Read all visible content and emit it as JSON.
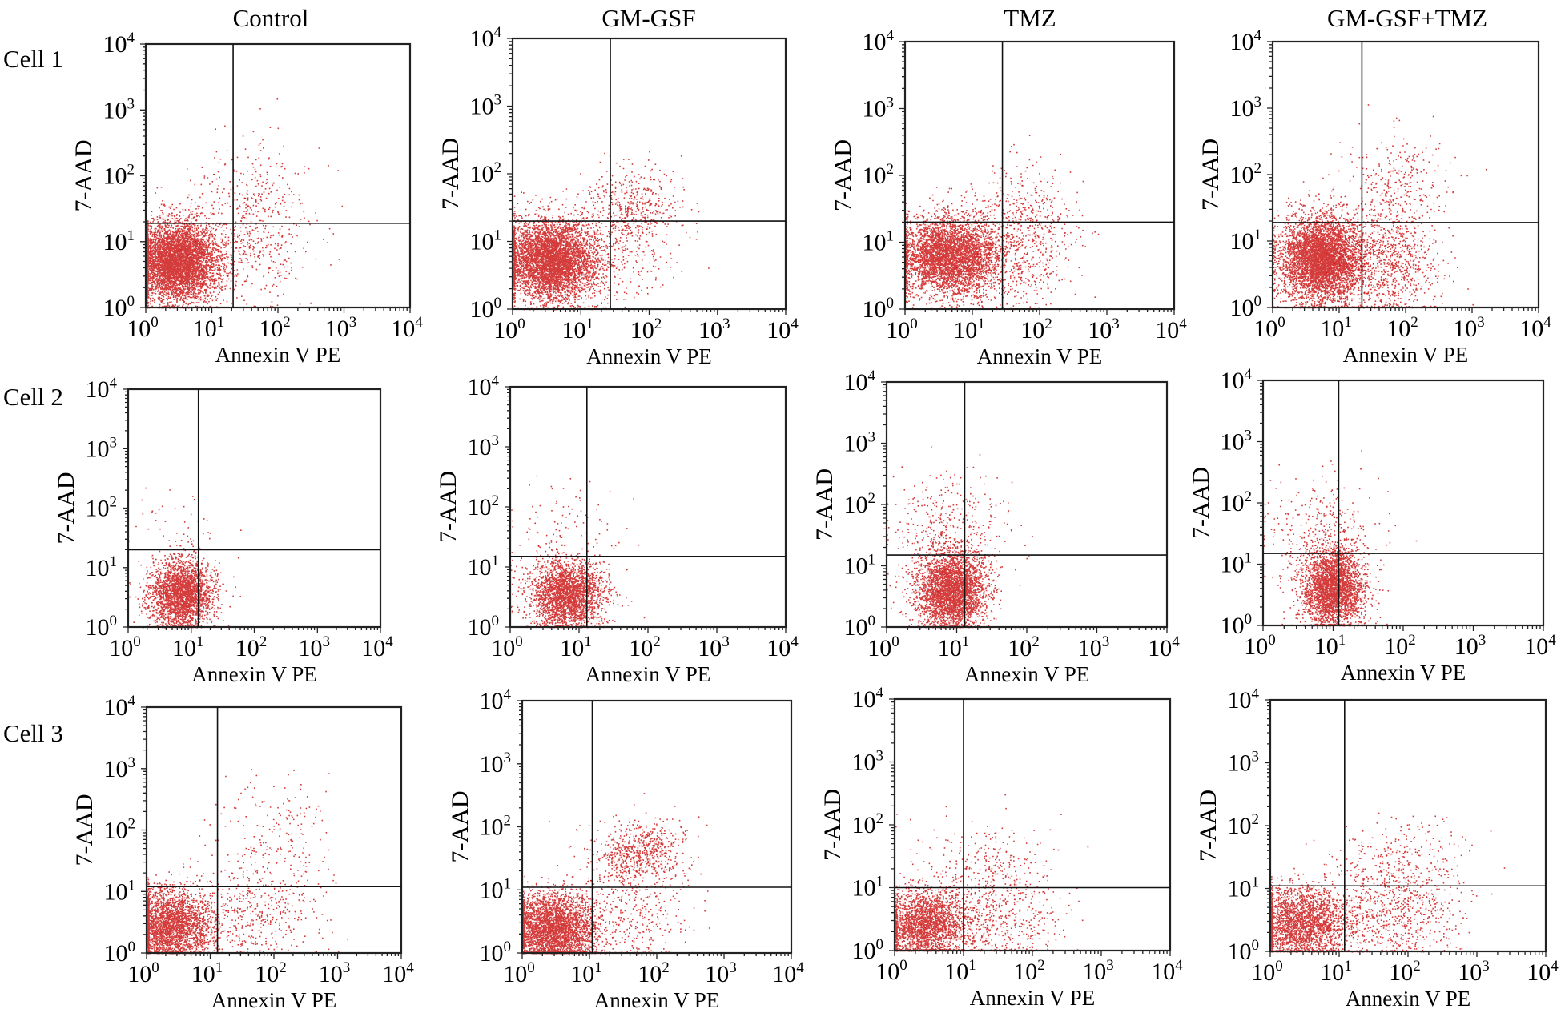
{
  "figure": {
    "column_titles": [
      "Control",
      "GM-GSF",
      "TMZ",
      "GM-GSF+TMZ"
    ],
    "row_labels": [
      "Cell 1",
      "Cell 2",
      "Cell 3"
    ],
    "xlabel": "Annexin V  PE",
    "ylabel": "7-AAD",
    "dot_color": "#cc1a1a",
    "axis_color": "#222222"
  },
  "chart_data": {
    "type": "scatter",
    "title": "",
    "xlabel": "Annexin V  PE",
    "ylabel": "7-AAD",
    "xscale": "log",
    "yscale": "log",
    "xlim": [
      1,
      10000
    ],
    "ylim": [
      1,
      10000
    ],
    "x_ticks": [
      1,
      10,
      100,
      1000,
      10000
    ],
    "y_ticks": [
      1,
      10,
      100,
      1000,
      10000
    ],
    "tick_labels": [
      "10^0",
      "10^1",
      "10^2",
      "10^3",
      "10^4"
    ],
    "grid": false,
    "legend": "none",
    "panels": [
      {
        "row": "Cell 1",
        "column": "Control",
        "gate_x": 21,
        "gate_y": 19,
        "clusters": [
          {
            "log_cx": 0.45,
            "log_cy": 0.7,
            "log_sx": 0.32,
            "log_sy": 0.3,
            "n": 5200
          },
          {
            "log_cx": 1.55,
            "log_cy": 1.0,
            "log_sx": 0.45,
            "log_sy": 0.5,
            "n": 450
          },
          {
            "log_cx": 1.7,
            "log_cy": 1.9,
            "log_sx": 0.45,
            "log_sy": 0.45,
            "n": 160
          }
        ]
      },
      {
        "row": "Cell 1",
        "column": "GM-GSF",
        "gate_x": 27,
        "gate_y": 20,
        "clusters": [
          {
            "log_cx": 0.55,
            "log_cy": 0.72,
            "log_sx": 0.34,
            "log_sy": 0.3,
            "n": 5000
          },
          {
            "log_cx": 1.75,
            "log_cy": 1.5,
            "log_sx": 0.35,
            "log_sy": 0.3,
            "n": 450
          },
          {
            "log_cx": 1.6,
            "log_cy": 0.8,
            "log_sx": 0.4,
            "log_sy": 0.4,
            "n": 250
          }
        ]
      },
      {
        "row": "Cell 1",
        "column": "TMZ",
        "gate_x": 28,
        "gate_y": 20,
        "clusters": [
          {
            "log_cx": 0.65,
            "log_cy": 0.8,
            "log_sx": 0.38,
            "log_sy": 0.3,
            "n": 4200
          },
          {
            "log_cx": 1.8,
            "log_cy": 1.3,
            "log_sx": 0.4,
            "log_sy": 0.45,
            "n": 450
          },
          {
            "log_cx": 1.7,
            "log_cy": 0.6,
            "log_sx": 0.35,
            "log_sy": 0.4,
            "n": 250
          }
        ]
      },
      {
        "row": "Cell 1",
        "column": "GM-GSF+TMZ",
        "gate_x": 22,
        "gate_y": 19,
        "clusters": [
          {
            "log_cx": 0.72,
            "log_cy": 0.72,
            "log_sx": 0.3,
            "log_sy": 0.32,
            "n": 5000
          },
          {
            "log_cx": 1.75,
            "log_cy": 0.65,
            "log_sx": 0.4,
            "log_sy": 0.4,
            "n": 900
          },
          {
            "log_cx": 1.8,
            "log_cy": 1.75,
            "log_sx": 0.4,
            "log_sy": 0.4,
            "n": 350
          }
        ]
      },
      {
        "row": "Cell 2",
        "column": "Control",
        "gate_x": 13,
        "gate_y": 20,
        "clusters": [
          {
            "log_cx": 0.85,
            "log_cy": 0.55,
            "log_sx": 0.25,
            "log_sy": 0.3,
            "n": 2600
          },
          {
            "log_cx": 0.7,
            "log_cy": 1.6,
            "log_sx": 0.4,
            "log_sy": 0.45,
            "n": 50
          }
        ]
      },
      {
        "row": "Cell 2",
        "column": "GM-GSF",
        "gate_x": 13,
        "gate_y": 15,
        "clusters": [
          {
            "log_cx": 0.82,
            "log_cy": 0.55,
            "log_sx": 0.27,
            "log_sy": 0.3,
            "n": 2600
          },
          {
            "log_cx": 0.7,
            "log_cy": 1.6,
            "log_sx": 0.45,
            "log_sy": 0.45,
            "n": 110
          }
        ]
      },
      {
        "row": "Cell 2",
        "column": "TMZ",
        "gate_x": 13,
        "gate_y": 15,
        "clusters": [
          {
            "log_cx": 0.92,
            "log_cy": 0.6,
            "log_sx": 0.25,
            "log_sy": 0.32,
            "n": 3400
          },
          {
            "log_cx": 0.9,
            "log_cy": 1.6,
            "log_sx": 0.45,
            "log_sy": 0.45,
            "n": 380
          }
        ]
      },
      {
        "row": "Cell 2",
        "column": "GM-GSF+TMZ",
        "gate_x": 12,
        "gate_y": 15,
        "clusters": [
          {
            "log_cx": 0.98,
            "log_cy": 0.6,
            "log_sx": 0.22,
            "log_sy": 0.32,
            "n": 3200
          },
          {
            "log_cx": 0.8,
            "log_cy": 1.6,
            "log_sx": 0.45,
            "log_sy": 0.45,
            "n": 300
          }
        ]
      },
      {
        "row": "Cell 3",
        "column": "Control",
        "gate_x": 13,
        "gate_y": 12,
        "clusters": [
          {
            "log_cx": 0.35,
            "log_cy": 0.45,
            "log_sx": 0.35,
            "log_sy": 0.3,
            "n": 2800
          },
          {
            "log_cx": 1.7,
            "log_cy": 0.7,
            "log_sx": 0.5,
            "log_sy": 0.45,
            "n": 450
          },
          {
            "log_cx": 2.0,
            "log_cy": 1.9,
            "log_sx": 0.45,
            "log_sy": 0.5,
            "n": 180
          }
        ]
      },
      {
        "row": "Cell 3",
        "column": "GM-GSF",
        "gate_x": 11,
        "gate_y": 11,
        "clusters": [
          {
            "log_cx": 0.45,
            "log_cy": 0.35,
            "log_sx": 0.33,
            "log_sy": 0.3,
            "n": 3600
          },
          {
            "log_cx": 1.75,
            "log_cy": 1.6,
            "log_sx": 0.35,
            "log_sy": 0.25,
            "n": 700
          },
          {
            "log_cx": 1.6,
            "log_cy": 0.6,
            "log_sx": 0.45,
            "log_sy": 0.45,
            "n": 350
          }
        ]
      },
      {
        "row": "Cell 3",
        "column": "TMZ",
        "gate_x": 10,
        "gate_y": 10,
        "clusters": [
          {
            "log_cx": 0.45,
            "log_cy": 0.42,
            "log_sx": 0.3,
            "log_sy": 0.28,
            "n": 2300
          },
          {
            "log_cx": 1.5,
            "log_cy": 0.55,
            "log_sx": 0.45,
            "log_sy": 0.4,
            "n": 550
          },
          {
            "log_cx": 1.3,
            "log_cy": 1.45,
            "log_sx": 0.5,
            "log_sy": 0.35,
            "n": 200
          }
        ]
      },
      {
        "row": "Cell 3",
        "column": "GM-GSF+TMZ",
        "gate_x": 12,
        "gate_y": 11,
        "clusters": [
          {
            "log_cx": 0.45,
            "log_cy": 0.45,
            "log_sx": 0.35,
            "log_sy": 0.3,
            "n": 2400
          },
          {
            "log_cx": 1.75,
            "log_cy": 0.55,
            "log_sx": 0.5,
            "log_sy": 0.4,
            "n": 650
          },
          {
            "log_cx": 1.9,
            "log_cy": 1.5,
            "log_sx": 0.45,
            "log_sy": 0.35,
            "n": 280
          }
        ]
      }
    ]
  }
}
